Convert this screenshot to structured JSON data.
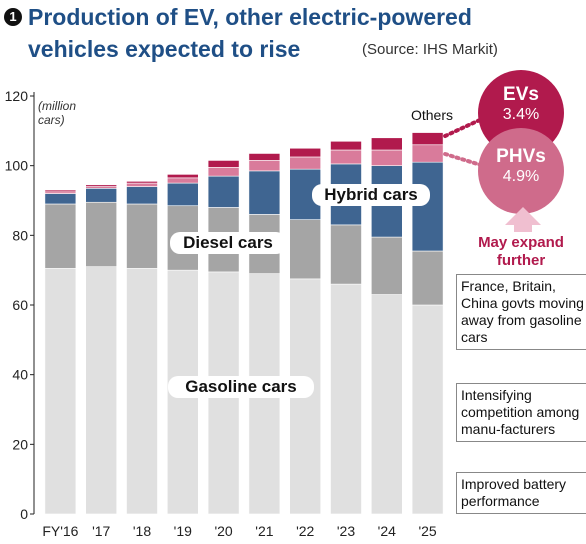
{
  "header": {
    "badge": "1",
    "title_line1": "Production of EV, other electric-powered",
    "title_line2": "vehicles expected to rise",
    "source": "(Source: IHS Markit)"
  },
  "chart_data": {
    "type": "bar",
    "stacked": true,
    "ylabel": "(million cars)",
    "ylabel_line1": "(million",
    "ylabel_line2": "cars)",
    "ylim": [
      0,
      120
    ],
    "yticks": [
      0,
      20,
      40,
      60,
      80,
      100,
      120
    ],
    "categories": [
      "FY'16",
      "'17",
      "'18",
      "'19",
      "'20",
      "'21",
      "'22",
      "'23",
      "'24",
      "'25"
    ],
    "series": [
      {
        "name": "Gasoline cars",
        "color": "#e0e0e0",
        "values": [
          70.5,
          71,
          70.5,
          70,
          69.5,
          69,
          67.5,
          66,
          63,
          60
        ]
      },
      {
        "name": "Diesel cars",
        "color": "#a5a5a5",
        "values": [
          18.5,
          18.5,
          18.5,
          18.5,
          18.5,
          17,
          17,
          17,
          16.5,
          15.5
        ]
      },
      {
        "name": "Hybrid cars",
        "color": "#3f6591",
        "values": [
          3,
          4,
          5,
          6.5,
          9,
          12.5,
          14.5,
          17.5,
          20.5,
          25.5
        ]
      },
      {
        "name": "PHVs",
        "color": "#d97b9b",
        "values": [
          0.5,
          0.5,
          1,
          1.5,
          2.5,
          3,
          3.5,
          4,
          4.5,
          5
        ]
      },
      {
        "name": "EVs",
        "color": "#b11a4d",
        "values": [
          0.5,
          0.5,
          0.5,
          1,
          2,
          2,
          2.5,
          2.5,
          3.5,
          3.5
        ]
      }
    ],
    "annotations": {
      "gasoline": "Gasoline cars",
      "diesel": "Diesel cars",
      "hybrid": "Hybrid cars",
      "others": "Others"
    }
  },
  "callouts": {
    "ev_label": "EVs",
    "ev_pct": "3.4%",
    "phv_label": "PHVs",
    "phv_pct": "4.9%",
    "expand_line1": "May expand",
    "expand_line2": "further",
    "reason1": "France, Britain, China govts moving away from gasoline cars",
    "reason2": "Intensifying competition among manu-facturers",
    "reason3": "Improved battery performance"
  },
  "colors": {
    "title": "#1f4f86",
    "ev": "#b11a4d",
    "phv": "#cf6b8b",
    "hybrid": "#3f6591",
    "diesel": "#a5a5a5",
    "gasoline": "#e0e0e0",
    "arrow": "#f0bfd0"
  }
}
